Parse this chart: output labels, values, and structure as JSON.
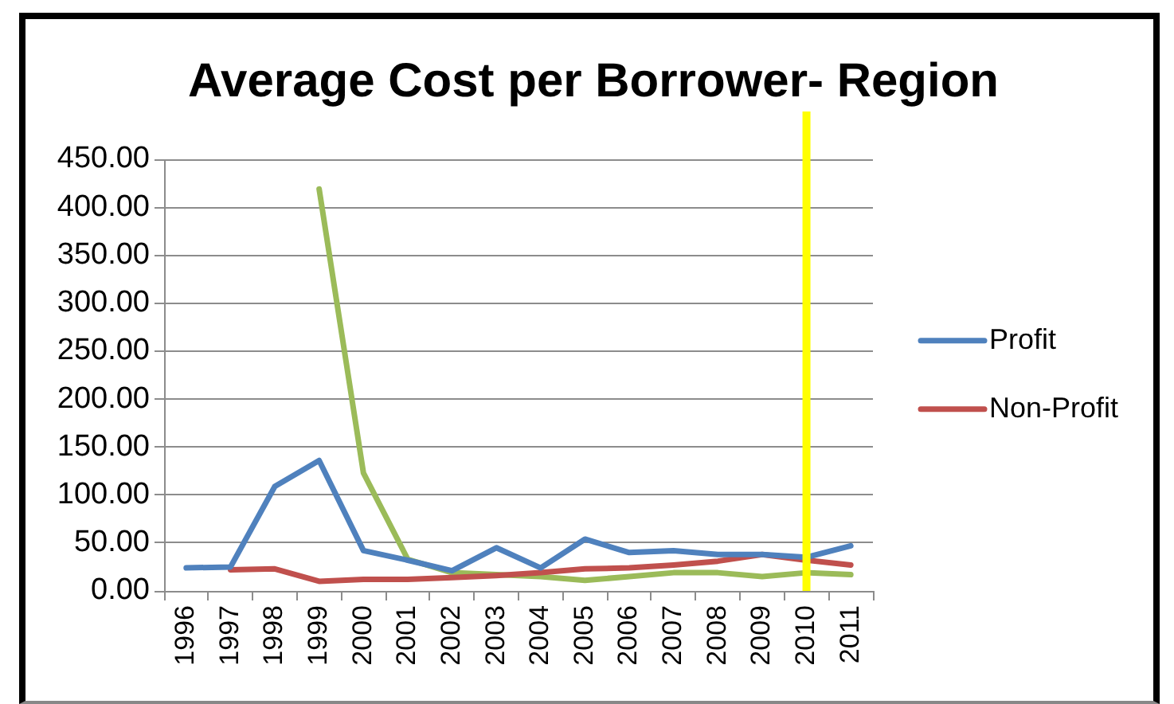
{
  "chart_data": {
    "type": "line",
    "title": "Average Cost per Borrower- Region",
    "categories": [
      "1996",
      "1997",
      "1998",
      "1999",
      "2000",
      "2001",
      "2002",
      "2003",
      "2004",
      "2005",
      "2006",
      "2007",
      "2008",
      "2009",
      "2010",
      "2011"
    ],
    "series": [
      {
        "name": "Profit",
        "color": "#4f81bd",
        "values": [
          24,
          25,
          109,
          136,
          42,
          32,
          21,
          45,
          24,
          54,
          40,
          42,
          38,
          38,
          35,
          47
        ]
      },
      {
        "name": "Non-Profit",
        "color": "#c0504d",
        "values": [
          null,
          22,
          23,
          10,
          12,
          12,
          14,
          16,
          19,
          23,
          24,
          27,
          31,
          38,
          32,
          27
        ]
      },
      {
        "color": "#9bbb59",
        "values": [
          null,
          null,
          null,
          419,
          123,
          33,
          19,
          17,
          15,
          11,
          15,
          19,
          19,
          15,
          19,
          17
        ]
      }
    ],
    "ylim": [
      0,
      450
    ],
    "yticks": [
      {
        "value": 0,
        "label": "0.00"
      },
      {
        "value": 50,
        "label": "50.00"
      },
      {
        "value": 100,
        "label": "100.00"
      },
      {
        "value": 150,
        "label": "150.00"
      },
      {
        "value": 200,
        "label": "200.00"
      },
      {
        "value": 250,
        "label": "250.00"
      },
      {
        "value": 300,
        "label": "300.00"
      },
      {
        "value": 350,
        "label": "350.00"
      },
      {
        "value": 400,
        "label": "400.00"
      },
      {
        "value": 450,
        "label": "450.00"
      }
    ],
    "grid": "y",
    "legend": "right",
    "ref_lines": [
      {
        "axis": "x",
        "value": "2010",
        "color": "#ffff00"
      }
    ]
  }
}
